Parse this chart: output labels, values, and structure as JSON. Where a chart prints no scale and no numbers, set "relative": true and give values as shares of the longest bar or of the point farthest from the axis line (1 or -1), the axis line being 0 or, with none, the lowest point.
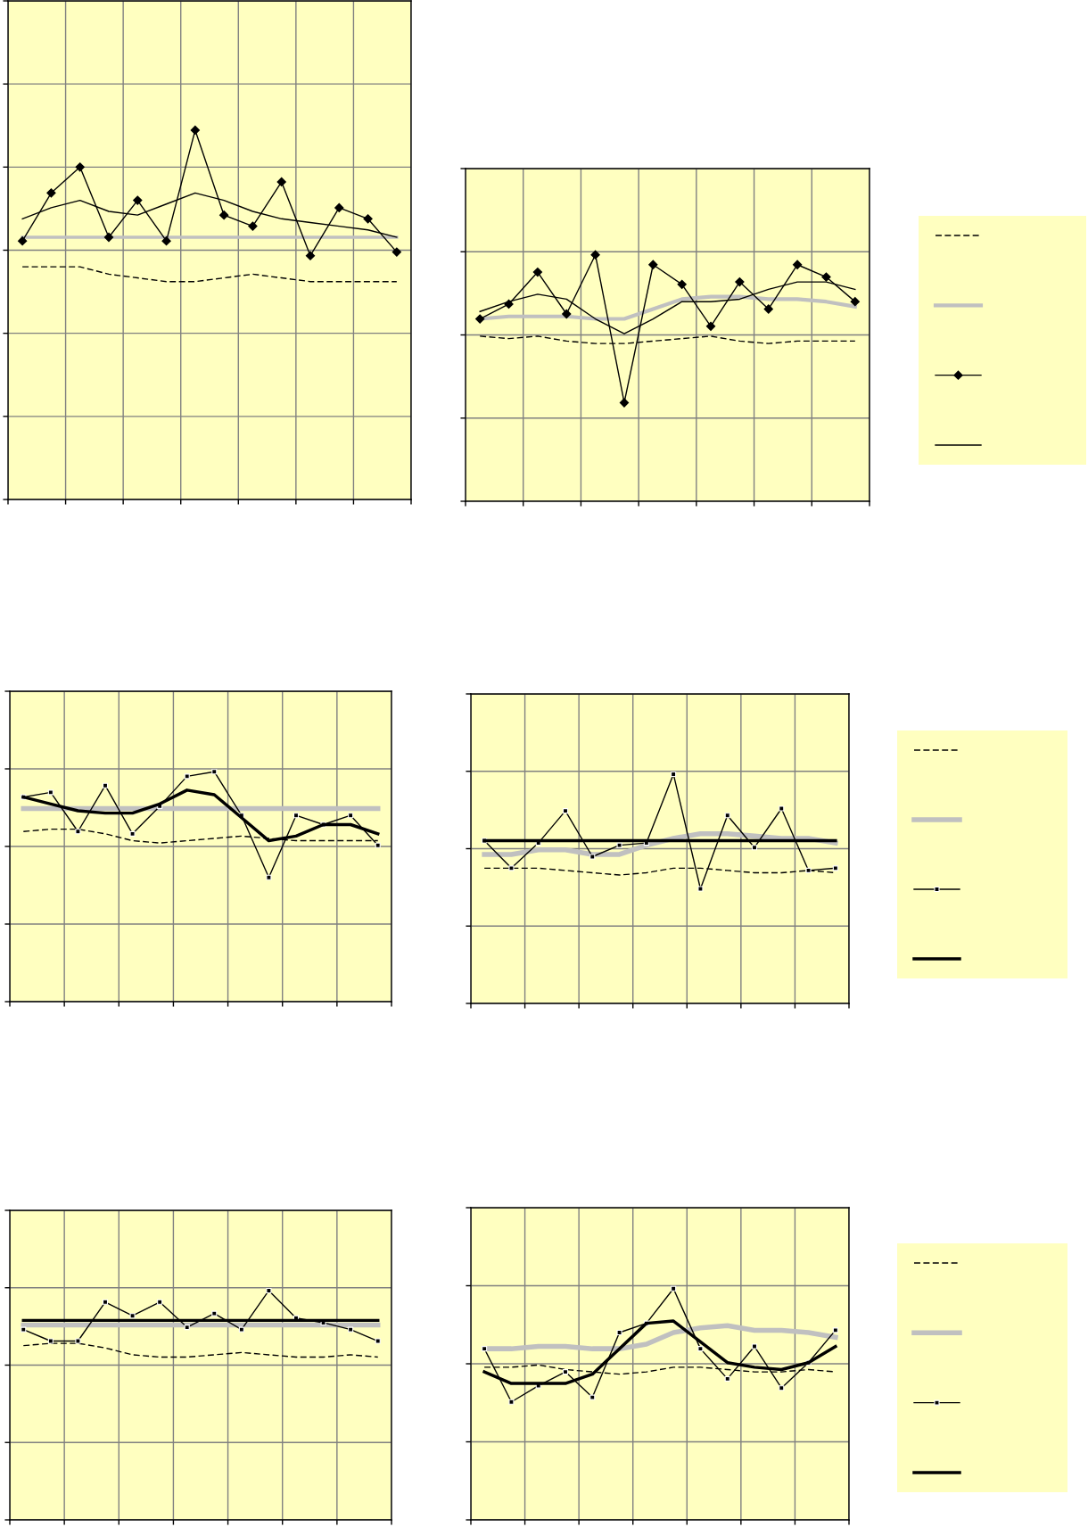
{
  "chart_data": [
    {
      "type": "line",
      "relative": true,
      "grid": true,
      "categories": [
        null,
        null,
        null,
        null,
        null,
        null,
        null,
        null,
        null,
        null,
        null,
        null,
        null,
        null
      ],
      "series": [
        {
          "color": "#000000",
          "line_style": "dashed",
          "marker": "none",
          "values": [
            0.63,
            0.63,
            0.63,
            0.61,
            0.6,
            0.59,
            0.59,
            0.6,
            0.61,
            0.6,
            0.59,
            0.59,
            0.59,
            0.59
          ]
        },
        {
          "color": "#c0c0c0",
          "line_style": "solid",
          "marker": "none",
          "values": [
            0.71,
            0.71,
            0.71,
            0.71,
            0.71,
            0.71,
            0.71,
            0.71,
            0.71,
            0.71,
            0.71,
            0.71,
            0.71,
            0.71
          ]
        },
        {
          "color": "#000000",
          "line_style": "solid",
          "marker": "diamond",
          "values": [
            0.7,
            0.83,
            0.9,
            0.71,
            0.81,
            0.7,
            1,
            0.77,
            0.74,
            0.86,
            0.66,
            0.79,
            0.76,
            0.67
          ]
        },
        {
          "color": "#000000",
          "line_style": "solid",
          "marker": "none",
          "values": [
            0.76,
            0.79,
            0.81,
            0.78,
            0.77,
            0.8,
            0.83,
            0.81,
            0.78,
            0.76,
            0.75,
            0.74,
            0.73,
            0.71
          ]
        }
      ]
    },
    {
      "type": "line",
      "relative": true,
      "grid": true,
      "categories": [
        null,
        null,
        null,
        null,
        null,
        null,
        null,
        null,
        null,
        null,
        null,
        null,
        null,
        null
      ],
      "series": [
        {
          "color": "#000000",
          "line_style": "dashed",
          "marker": "none",
          "values": [
            0.67,
            0.66,
            0.67,
            0.65,
            0.64,
            0.64,
            0.65,
            0.66,
            0.67,
            0.65,
            0.64,
            0.65,
            0.65,
            0.65
          ]
        },
        {
          "color": "#c0c0c0",
          "line_style": "solid",
          "marker": "none",
          "values": [
            0.74,
            0.75,
            0.75,
            0.75,
            0.74,
            0.74,
            0.78,
            0.82,
            0.83,
            0.83,
            0.82,
            0.82,
            0.81,
            0.79
          ]
        },
        {
          "color": "#000000",
          "line_style": "solid",
          "marker": "diamond",
          "values": [
            0.74,
            0.8,
            0.93,
            0.76,
            1,
            0.4,
            0.96,
            0.88,
            0.71,
            0.89,
            0.78,
            0.96,
            0.91,
            0.81
          ]
        },
        {
          "color": "#000000",
          "line_style": "solid",
          "marker": "none",
          "values": [
            0.77,
            0.81,
            0.84,
            0.82,
            0.74,
            0.68,
            0.74,
            0.81,
            0.81,
            0.82,
            0.86,
            0.89,
            0.89,
            0.86
          ]
        }
      ]
    },
    {
      "type": "line",
      "relative": true,
      "grid": true,
      "categories": [
        null,
        null,
        null,
        null,
        null,
        null,
        null,
        null,
        null,
        null,
        null,
        null,
        null,
        null
      ],
      "series": [
        {
          "color": "#000000",
          "line_style": "dashed",
          "marker": "none",
          "values": [
            0.74,
            0.75,
            0.75,
            0.73,
            0.7,
            0.69,
            0.7,
            0.71,
            0.72,
            0.71,
            0.7,
            0.7,
            0.7,
            0.7
          ]
        },
        {
          "color": "#c0c0c0",
          "line_style": "solid",
          "marker": "none",
          "values": [
            0.84,
            0.84,
            0.84,
            0.84,
            0.84,
            0.84,
            0.84,
            0.84,
            0.84,
            0.84,
            0.84,
            0.84,
            0.84,
            0.84
          ]
        },
        {
          "color": "#000000",
          "line_style": "solid",
          "marker": "square",
          "values": [
            0.89,
            0.91,
            0.74,
            0.94,
            0.73,
            0.85,
            0.98,
            1,
            0.81,
            0.54,
            0.81,
            0.77,
            0.81,
            0.68
          ]
        },
        {
          "color": "#000000",
          "line_style": "solid",
          "marker": "none",
          "values": [
            0.89,
            0.86,
            0.83,
            0.82,
            0.82,
            0.86,
            0.92,
            0.9,
            0.8,
            0.7,
            0.72,
            0.77,
            0.77,
            0.73
          ]
        }
      ]
    },
    {
      "type": "line",
      "relative": true,
      "grid": true,
      "categories": [
        null,
        null,
        null,
        null,
        null,
        null,
        null,
        null,
        null,
        null,
        null,
        null,
        null,
        null
      ],
      "series": [
        {
          "color": "#000000",
          "line_style": "dashed",
          "marker": "none",
          "values": [
            0.59,
            0.59,
            0.59,
            0.58,
            0.57,
            0.56,
            0.57,
            0.59,
            0.59,
            0.58,
            0.57,
            0.57,
            0.58,
            0.57
          ]
        },
        {
          "color": "#c0c0c0",
          "line_style": "solid",
          "marker": "none",
          "values": [
            0.65,
            0.65,
            0.67,
            0.67,
            0.65,
            0.65,
            0.69,
            0.72,
            0.74,
            0.74,
            0.73,
            0.72,
            0.72,
            0.7
          ]
        },
        {
          "color": "#000000",
          "line_style": "solid",
          "marker": "square",
          "values": [
            0.71,
            0.59,
            0.7,
            0.84,
            0.64,
            0.69,
            0.7,
            1,
            0.5,
            0.82,
            0.68,
            0.85,
            0.58,
            0.59
          ]
        },
        {
          "color": "#000000",
          "line_style": "solid",
          "marker": "none",
          "values": [
            0.71,
            0.71,
            0.71,
            0.71,
            0.71,
            0.71,
            0.71,
            0.71,
            0.71,
            0.71,
            0.71,
            0.71,
            0.71,
            0.71
          ]
        }
      ]
    },
    {
      "type": "line",
      "relative": true,
      "grid": true,
      "categories": [
        null,
        null,
        null,
        null,
        null,
        null,
        null,
        null,
        null,
        null,
        null,
        null,
        null,
        null
      ],
      "series": [
        {
          "color": "#000000",
          "line_style": "dashed",
          "marker": "none",
          "values": [
            0.76,
            0.77,
            0.77,
            0.75,
            0.72,
            0.71,
            0.71,
            0.72,
            0.73,
            0.72,
            0.71,
            0.71,
            0.72,
            0.71
          ]
        },
        {
          "color": "#c0c0c0",
          "line_style": "solid",
          "marker": "none",
          "values": [
            0.85,
            0.85,
            0.85,
            0.85,
            0.85,
            0.85,
            0.85,
            0.85,
            0.85,
            0.85,
            0.85,
            0.85,
            0.85,
            0.85
          ]
        },
        {
          "color": "#000000",
          "line_style": "solid",
          "marker": "square",
          "values": [
            0.83,
            0.78,
            0.78,
            0.95,
            0.89,
            0.95,
            0.84,
            0.9,
            0.83,
            1,
            0.88,
            0.86,
            0.83,
            0.78
          ]
        },
        {
          "color": "#000000",
          "line_style": "solid",
          "marker": "none",
          "values": [
            0.87,
            0.87,
            0.87,
            0.87,
            0.87,
            0.87,
            0.87,
            0.87,
            0.87,
            0.87,
            0.87,
            0.87,
            0.87,
            0.87
          ]
        }
      ]
    },
    {
      "type": "line",
      "relative": true,
      "grid": true,
      "categories": [
        null,
        null,
        null,
        null,
        null,
        null,
        null,
        null,
        null,
        null,
        null,
        null,
        null,
        null
      ],
      "series": [
        {
          "color": "#000000",
          "line_style": "dashed",
          "marker": "none",
          "values": [
            0.66,
            0.66,
            0.67,
            0.65,
            0.64,
            0.63,
            0.64,
            0.66,
            0.66,
            0.65,
            0.64,
            0.64,
            0.65,
            0.64
          ]
        },
        {
          "color": "#c0c0c0",
          "line_style": "solid",
          "marker": "none",
          "values": [
            0.74,
            0.74,
            0.75,
            0.75,
            0.74,
            0.74,
            0.76,
            0.81,
            0.83,
            0.84,
            0.82,
            0.82,
            0.81,
            0.79
          ]
        },
        {
          "color": "#000000",
          "line_style": "solid",
          "marker": "square",
          "values": [
            0.74,
            0.51,
            0.58,
            0.64,
            0.53,
            0.81,
            0.85,
            1,
            0.74,
            0.61,
            0.75,
            0.57,
            0.68,
            0.82
          ]
        },
        {
          "color": "#000000",
          "line_style": "solid",
          "marker": "none",
          "values": [
            0.64,
            0.59,
            0.59,
            0.59,
            0.63,
            0.74,
            0.85,
            0.86,
            0.77,
            0.68,
            0.66,
            0.65,
            0.68,
            0.75
          ]
        }
      ]
    }
  ]
}
